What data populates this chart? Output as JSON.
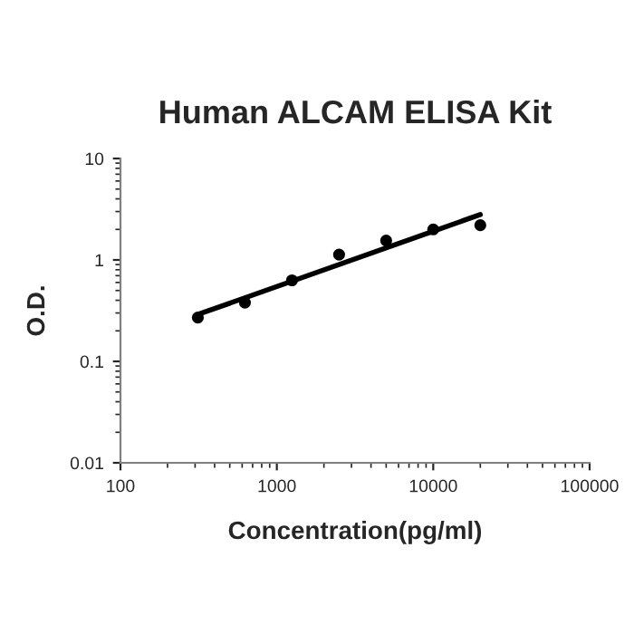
{
  "chart_data": {
    "type": "scatter",
    "title": "Human ALCAM ELISA Kit",
    "xlabel": "Concentration(pg/ml)",
    "ylabel": "O.D.",
    "log": "xy",
    "xlim": [
      100,
      100000
    ],
    "ylim": [
      0.01,
      10
    ],
    "xticks": [
      100,
      1000,
      10000,
      100000
    ],
    "yticks": [
      0.01,
      0.1,
      1,
      10
    ],
    "grid": false,
    "legend": false,
    "series": [
      {
        "marker": "circle",
        "color": "#000000",
        "x": [
          312.5,
          625,
          1250,
          2500,
          5000,
          10000,
          20000
        ],
        "values": [
          0.27,
          0.38,
          0.63,
          1.13,
          1.55,
          2.0,
          2.2
        ]
      },
      {
        "type": "line",
        "marker": "none",
        "color": "#000000",
        "line_style": "solid",
        "x": [
          312.5,
          20000
        ],
        "values": [
          0.29,
          2.8
        ]
      }
    ]
  }
}
